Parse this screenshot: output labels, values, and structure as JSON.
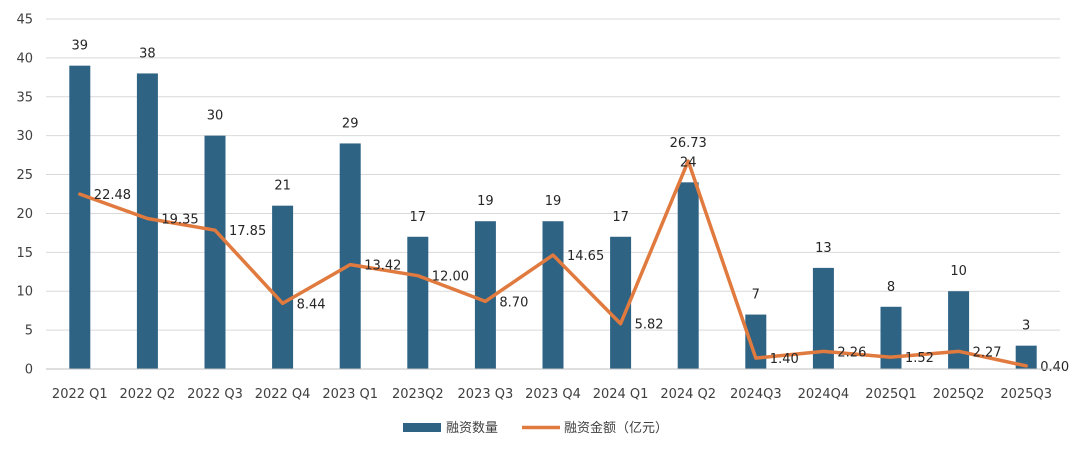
{
  "chart_data": {
    "type": "bar",
    "categories": [
      "2022 Q1",
      "2022 Q2",
      "2022 Q3",
      "2022 Q4",
      "2023 Q1",
      "2023Q2",
      "2023 Q3",
      "2023 Q4",
      "2024 Q1",
      "2024 Q2",
      "2024Q3",
      "2024Q4",
      "2025Q1",
      "2025Q2",
      "2025Q3"
    ],
    "series": [
      {
        "name": "融资数量",
        "type": "bar",
        "color": "#2E6384",
        "values": [
          39,
          38,
          30,
          21,
          29,
          17,
          19,
          19,
          17,
          24,
          7,
          13,
          8,
          10,
          3
        ],
        "labels": [
          "39",
          "38",
          "30",
          "21",
          "29",
          "17",
          "19",
          "19",
          "17",
          "24",
          "7",
          "13",
          "8",
          "10",
          "3"
        ]
      },
      {
        "name": "融资金额（亿元）",
        "type": "line",
        "color": "#E07A3F",
        "values": [
          22.48,
          19.35,
          17.85,
          8.44,
          13.42,
          12.0,
          8.7,
          14.65,
          5.82,
          26.73,
          1.4,
          2.26,
          1.52,
          2.27,
          0.4
        ],
        "labels": [
          "22.48",
          "19.35",
          "17.85",
          "8.44",
          "13.42",
          "12.00",
          "8.70",
          "14.65",
          "5.82",
          "26.73",
          "1.40",
          "2.26",
          "1.52",
          "2.27",
          "0.40"
        ]
      }
    ],
    "ylim": [
      0,
      45
    ],
    "yticks": [
      "0",
      "5",
      "10",
      "15",
      "20",
      "25",
      "30",
      "35",
      "40",
      "45"
    ],
    "grid": true,
    "legend_position": "bottom-center",
    "title": "",
    "xlabel": "",
    "ylabel": ""
  }
}
